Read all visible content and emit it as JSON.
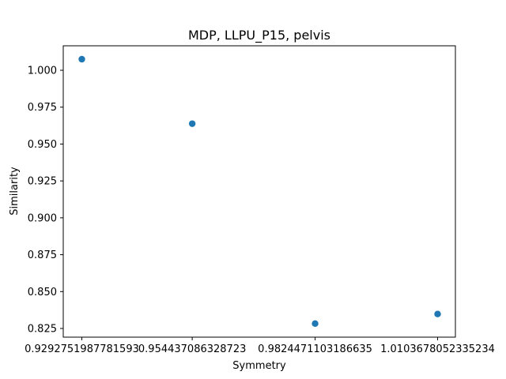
{
  "chart_data": {
    "type": "scatter",
    "title": "MDP, LLPU_P15, pelvis",
    "xlabel": "Symmetry",
    "ylabel": "Similarity",
    "x": [
      0.9292751987781593,
      0.954437086328723,
      0.9824471103186635,
      1.0103678052335234
    ],
    "y": [
      1.0075,
      0.9638,
      0.8283,
      0.8348
    ],
    "xticks": [
      0.9292751987781593,
      0.954437086328723,
      0.9824471103186635,
      1.0103678052335234
    ],
    "xtick_labels": [
      "0.9292751987781593",
      "0.954437086328723",
      "0.9824471103186635",
      "1.0103678052335234"
    ],
    "yticks": [
      0.825,
      0.85,
      0.875,
      0.9,
      0.925,
      0.95,
      0.975,
      1.0
    ],
    "ytick_labels": [
      "0.825",
      "0.850",
      "0.875",
      "0.900",
      "0.925",
      "0.950",
      "0.975",
      "1.000"
    ],
    "marker_color": "#1f77b4",
    "grid": false
  }
}
